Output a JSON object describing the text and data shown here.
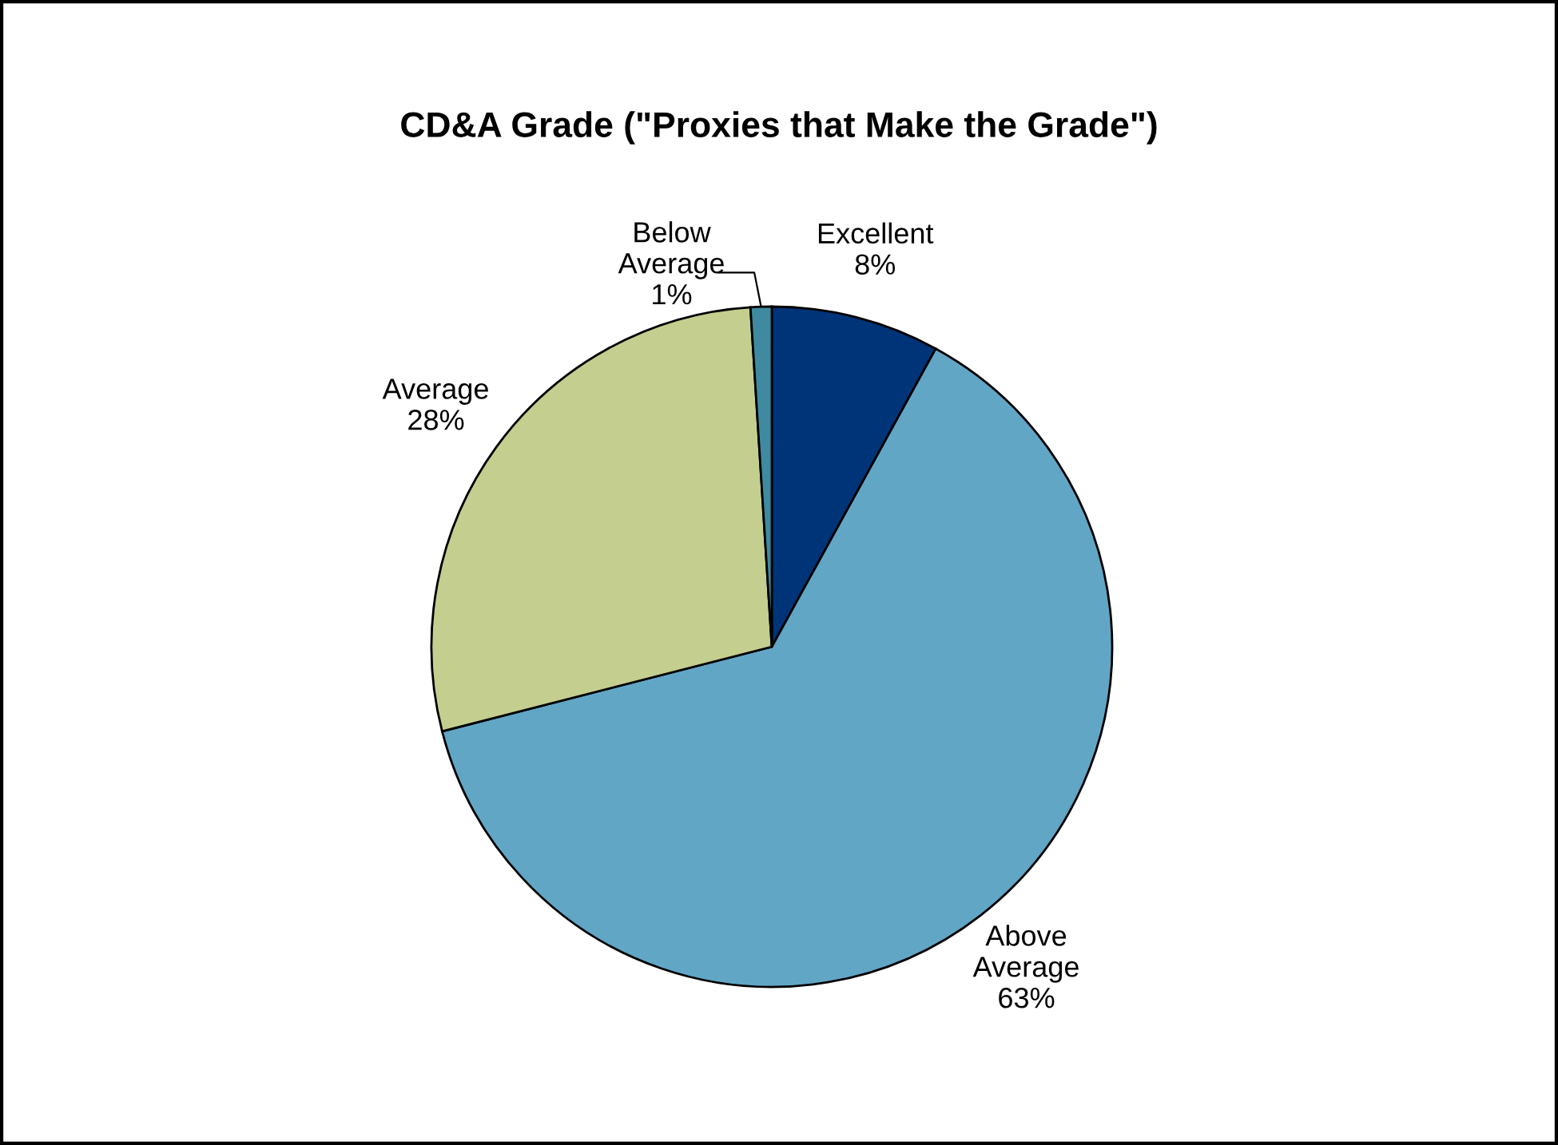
{
  "chart_data": {
    "type": "pie",
    "title": "CD&A Grade (\"Proxies that Make the Grade\")",
    "categories": [
      "Excellent",
      "Above\nAverage",
      "Average",
      "Below\nAverage"
    ],
    "values": [
      8,
      63,
      28,
      1
    ],
    "colors": [
      "#003478",
      "#62a6c6",
      "#c4cf8f",
      "#3f8aa0"
    ],
    "value_labels": [
      "8%",
      "63%",
      "28%",
      "1%"
    ]
  }
}
